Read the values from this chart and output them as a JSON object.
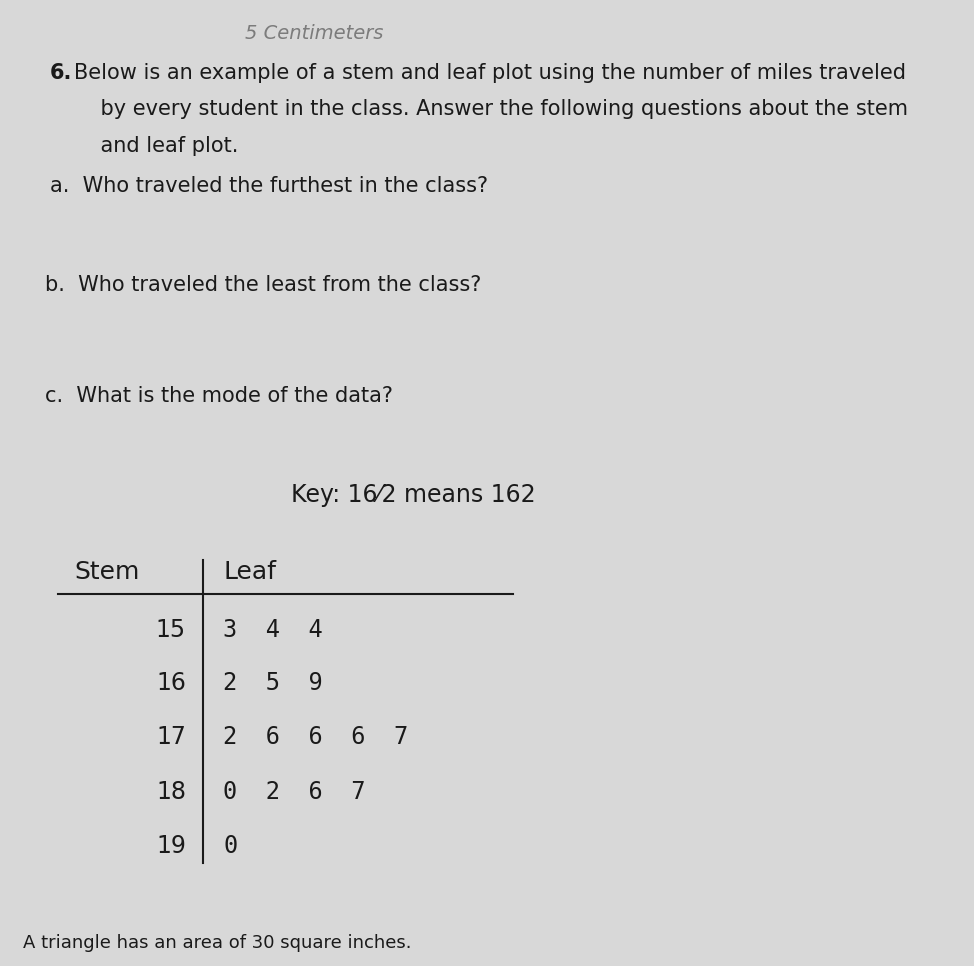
{
  "background_color": "#d8d8d8",
  "title_number": "6.",
  "title_text": "Below is an example of a stem and leaf plot using the number of miles traveled\n    by every student in the class. Answer the following questions about the stem\n    and leaf plot.",
  "question_a": "a.  Who traveled the furthest in the class?",
  "question_b": "b.  Who traveled the least from the class?",
  "question_c": "c.  What is the mode of the data?",
  "key_text": "Key: 16⁄2 means 162",
  "stem_header": "Stem",
  "leaf_header": "Leaf",
  "stems": [
    "15",
    "16",
    "17",
    "18",
    "19"
  ],
  "leaves": [
    "3  4  4",
    "2  5  9",
    "2  6  6  6  7",
    "0  2  6  7",
    "0"
  ],
  "footer_text": "    A triangle has an area of 30 square inches.",
  "text_color": "#1a1a1a",
  "font_size_title": 15,
  "font_size_questions": 15,
  "font_size_key": 17,
  "font_size_table": 17,
  "font_size_header": 18
}
